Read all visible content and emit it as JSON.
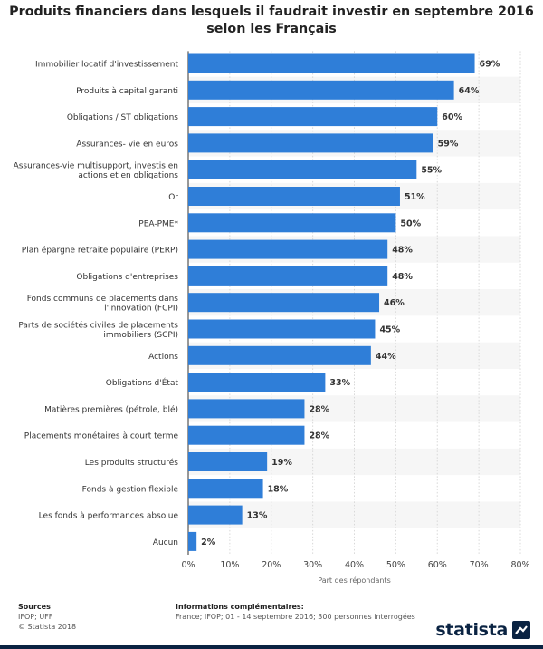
{
  "title": "Produits financiers dans lesquels il faudrait investir en septembre 2016 selon les Français",
  "chart_data": {
    "type": "bar",
    "orientation": "horizontal",
    "title": "Produits financiers dans lesquels il faudrait investir en septembre 2016 selon les Français",
    "xlabel": "Part des répondants",
    "xlim": [
      0,
      80
    ],
    "xticks": [
      "0%",
      "10%",
      "20%",
      "30%",
      "40%",
      "50%",
      "60%",
      "70%",
      "80%"
    ],
    "bar_color": "#2f7ed8",
    "grid": true,
    "categories": [
      [
        "Immobilier locatif d'investissement"
      ],
      [
        "Produits à capital garanti"
      ],
      [
        "Obligations / ST obligations"
      ],
      [
        "Assurances- vie en euros"
      ],
      [
        "Assurances-vie multisupport, investis en",
        "actions et en obligations"
      ],
      [
        "Or"
      ],
      [
        "PEA-PME*"
      ],
      [
        "Plan épargne retraite populaire (PERP)"
      ],
      [
        "Obligations d'entreprises"
      ],
      [
        "Fonds communs de placements dans",
        "l'innovation (FCPI)"
      ],
      [
        "Parts de sociétés civiles de placements",
        "immobiliers (SCPI)"
      ],
      [
        "Actions"
      ],
      [
        "Obligations d'État"
      ],
      [
        "Matières premières (pétrole, blé)"
      ],
      [
        "Placements monétaires à court terme"
      ],
      [
        "Les produits structurés"
      ],
      [
        "Fonds à gestion flexible"
      ],
      [
        "Les fonds à performances absolue"
      ],
      [
        "Aucun"
      ]
    ],
    "values": [
      69,
      64,
      60,
      59,
      55,
      51,
      50,
      48,
      48,
      46,
      45,
      44,
      33,
      28,
      28,
      19,
      18,
      13,
      2
    ],
    "value_labels": [
      "69%",
      "64%",
      "60%",
      "59%",
      "55%",
      "51%",
      "50%",
      "48%",
      "48%",
      "46%",
      "45%",
      "44%",
      "33%",
      "28%",
      "28%",
      "19%",
      "18%",
      "13%",
      "2%"
    ]
  },
  "footer": {
    "sources_heading": "Sources",
    "sources_lines": [
      "IFOP; UFF",
      "© Statista 2018"
    ],
    "info_heading": "Informations complémentaires:",
    "info_text": "France; IFOP; 01 - 14 septembre 2016; 300 personnes interrogées"
  },
  "brand": {
    "name": "statista",
    "color": "#0a2342"
  }
}
